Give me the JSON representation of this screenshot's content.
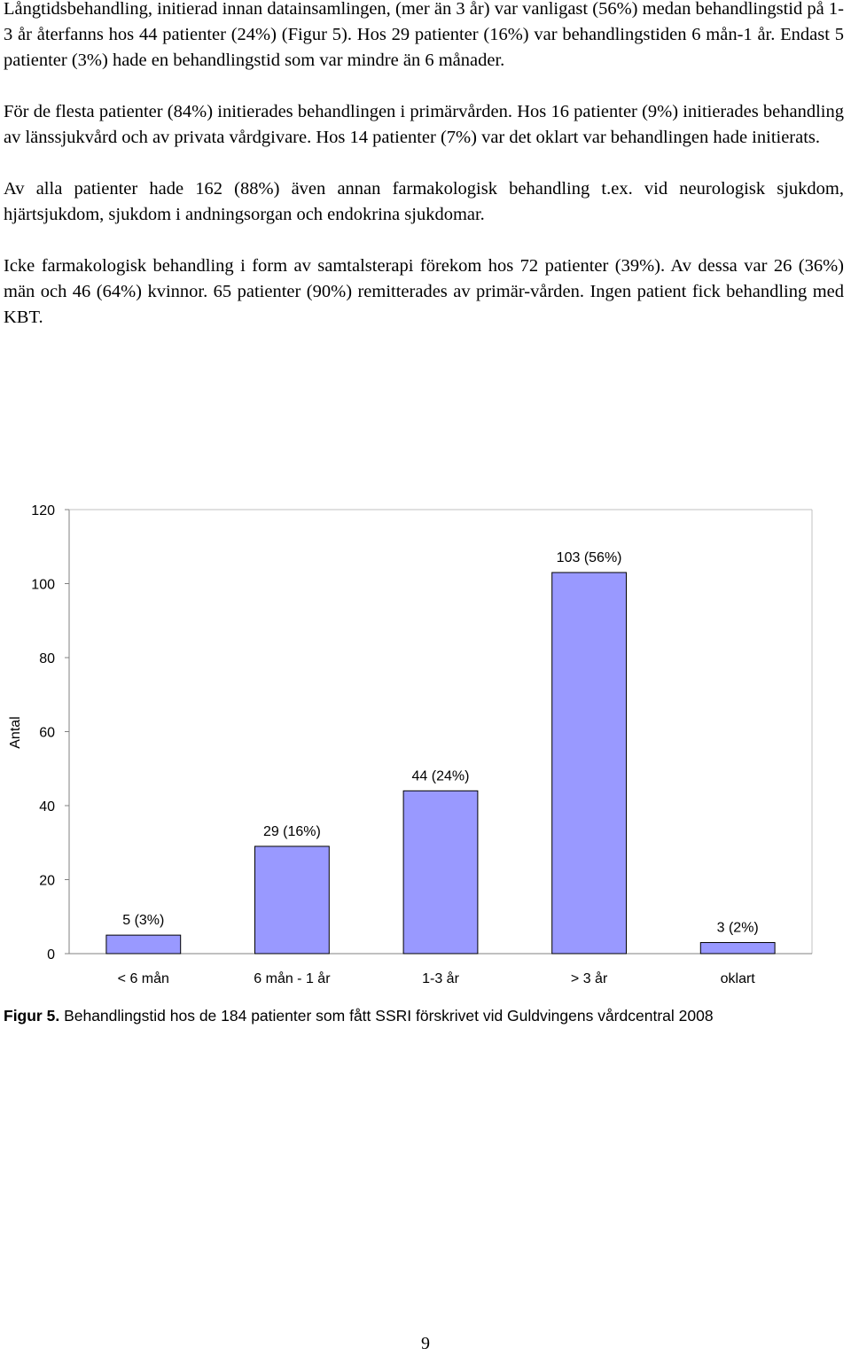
{
  "document": {
    "paragraphs": [
      "Långtidsbehandling, initierad innan datainsamlingen, (mer än 3 år) var vanligast (56%) medan behandlingstid på 1-3 år återfanns hos 44 patienter (24%) (Figur 5). Hos 29 patienter (16%) var behandlingstiden 6 mån-1 år. Endast 5 patienter (3%) hade en behandlingstid som var mindre än 6 månader.",
      "För de flesta patienter (84%) initierades behandlingen i primärvården. Hos 16 patienter (9%) initierades behandling av länssjukvård och av privata vårdgivare. Hos 14 patienter (7%) var det oklart var behandlingen hade initierats.",
      "Av alla patienter hade 162 (88%) även annan farmakologisk behandling t.ex. vid neurologisk sjukdom, hjärtsjukdom, sjukdom i andningsorgan och endokrina sjukdomar.",
      "Icke farmakologisk behandling i form av samtalsterapi förekom hos 72 patienter (39%). Av dessa var 26 (36%) män och 46 (64%) kvinnor. 65 patienter (90%) remitterades av primär-vården. Ingen patient fick behandling med KBT."
    ],
    "caption_label": "Figur 5.",
    "caption_text": " Behandlingstid hos de 184 patienter som fått SSRI förskrivet vid Guldvingens vårdcentral 2008",
    "page_number": "9"
  },
  "chart_data": {
    "type": "bar",
    "categories": [
      "< 6 mån",
      "6 mån - 1 år",
      "1-3 år",
      "> 3 år",
      "oklart"
    ],
    "values": [
      5,
      29,
      44,
      103,
      3
    ],
    "data_labels": [
      "5 (3%)",
      "29 (16%)",
      "44 (24%)",
      "103 (56%)",
      "3 (2%)"
    ],
    "xlabel": "",
    "ylabel": "Antal",
    "ylim": [
      0,
      120
    ],
    "yticks": [
      0,
      20,
      40,
      60,
      80,
      100,
      120
    ],
    "grid": false,
    "legend": "none",
    "bar_color": "#9999FF",
    "bar_edge_color": "#000000"
  }
}
